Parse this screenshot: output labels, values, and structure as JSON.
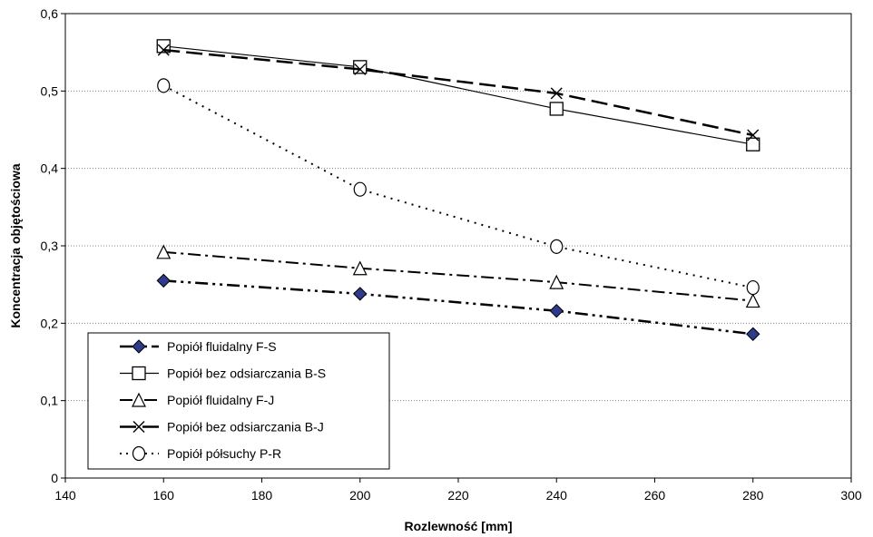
{
  "chart_data": {
    "type": "line",
    "xlabel": "Rozlewność [mm]",
    "ylabel": "Koncentracja objętościowa",
    "xlim": [
      140,
      300
    ],
    "ylim": [
      0,
      0.6
    ],
    "x_ticks": [
      "140",
      "160",
      "180",
      "200",
      "220",
      "240",
      "260",
      "280",
      "300"
    ],
    "y_ticks": [
      "0",
      "0,1",
      "0,2",
      "0,3",
      "0,4",
      "0,5",
      "0,6"
    ],
    "grid": "horizontal dotted",
    "legend_position": "bottom-left",
    "series": [
      {
        "name": "Popiół fluidalny F-S",
        "marker": "diamond",
        "line": "dash-dot-dot",
        "color": "#000000",
        "marker_fill": "#2e3a8c",
        "points": [
          [
            160,
            0.255
          ],
          [
            200,
            0.238
          ],
          [
            240,
            0.216
          ],
          [
            280,
            0.186
          ]
        ]
      },
      {
        "name": "Popiół bez odsiarczania  B-S",
        "marker": "square",
        "line": "solid",
        "color": "#000000",
        "marker_fill": "#ffffff",
        "points": [
          [
            160,
            0.558
          ],
          [
            200,
            0.531
          ],
          [
            240,
            0.477
          ],
          [
            280,
            0.431
          ]
        ]
      },
      {
        "name": "Popiół fluidalny F-J",
        "marker": "triangle",
        "line": "dash-dot",
        "color": "#000000",
        "marker_fill": "#ffffff",
        "points": [
          [
            160,
            0.292
          ],
          [
            200,
            0.271
          ],
          [
            240,
            0.253
          ],
          [
            280,
            0.229
          ]
        ]
      },
      {
        "name": "Popiół bez odsiarczania B-J",
        "marker": "x",
        "line": "long-dash",
        "color": "#000000",
        "marker_fill": "none",
        "points": [
          [
            160,
            0.553
          ],
          [
            200,
            0.528
          ],
          [
            240,
            0.497
          ],
          [
            280,
            0.443
          ]
        ]
      },
      {
        "name": "Popiół półsuchy P-R",
        "marker": "circle",
        "line": "dotted",
        "color": "#000000",
        "marker_fill": "#ffffff",
        "points": [
          [
            160,
            0.507
          ],
          [
            200,
            0.373
          ],
          [
            240,
            0.299
          ],
          [
            280,
            0.246
          ]
        ]
      }
    ]
  }
}
